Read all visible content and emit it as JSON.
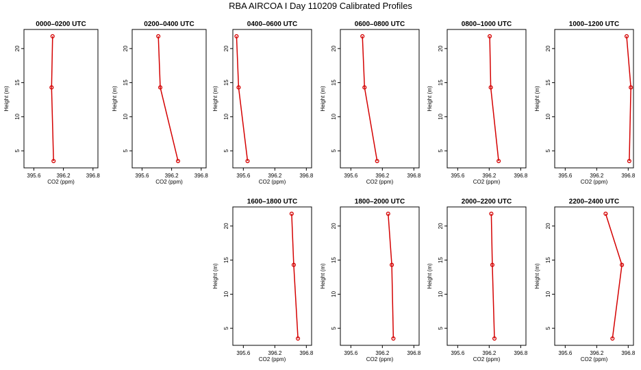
{
  "title": "RBA AIRCOA I  Day 110209  Calibrated Profiles",
  "colors": {
    "series": "#d40000",
    "axis": "#000000"
  },
  "chart_data": [
    {
      "type": "line",
      "title": "0000–0200 UTC",
      "xlabel": "CO2 (ppm)",
      "ylabel": "Height (m)",
      "xlim": [
        395.4,
        396.9
      ],
      "ylim": [
        2.5,
        22.8
      ],
      "xticks": [
        "395.6",
        "396.2",
        "396.8"
      ],
      "yticks": [
        "5",
        "10",
        "15",
        "20"
      ],
      "x": [
        396.0,
        395.96,
        395.98
      ],
      "y": [
        3.5,
        14.3,
        21.8
      ],
      "legend": "none",
      "grid": false
    },
    {
      "type": "line",
      "title": "0200–0400 UTC",
      "xlabel": "CO2 (ppm)",
      "ylabel": "Height (m)",
      "xlim": [
        395.4,
        396.9
      ],
      "ylim": [
        2.5,
        22.8
      ],
      "xticks": [
        "395.6",
        "396.2",
        "396.8"
      ],
      "yticks": [
        "5",
        "10",
        "15",
        "20"
      ],
      "x": [
        396.33,
        395.97,
        395.93
      ],
      "y": [
        3.5,
        14.3,
        21.8
      ],
      "legend": "none",
      "grid": false
    },
    {
      "type": "line",
      "title": "0400–0600 UTC",
      "xlabel": "CO2 (ppm)",
      "ylabel": "Height (m)",
      "xlim": [
        395.4,
        396.9
      ],
      "ylim": [
        2.5,
        22.8
      ],
      "xticks": [
        "395.6",
        "396.2",
        "396.8"
      ],
      "yticks": [
        "5",
        "10",
        "15",
        "20"
      ],
      "x": [
        395.68,
        395.51,
        395.47
      ],
      "y": [
        3.5,
        14.3,
        21.8
      ],
      "legend": "none",
      "grid": false
    },
    {
      "type": "line",
      "title": "0600–0800 UTC",
      "xlabel": "CO2 (ppm)",
      "ylabel": "Height (m)",
      "xlim": [
        395.4,
        396.9
      ],
      "ylim": [
        2.5,
        22.8
      ],
      "xticks": [
        "395.6",
        "396.2",
        "396.8"
      ],
      "yticks": [
        "5",
        "10",
        "15",
        "20"
      ],
      "x": [
        396.1,
        395.86,
        395.82
      ],
      "y": [
        3.5,
        14.3,
        21.8
      ],
      "legend": "none",
      "grid": false
    },
    {
      "type": "line",
      "title": "0800–1000 UTC",
      "xlabel": "CO2 (ppm)",
      "ylabel": "Height (m)",
      "xlim": [
        395.4,
        396.9
      ],
      "ylim": [
        2.5,
        22.8
      ],
      "xticks": [
        "395.6",
        "396.2",
        "396.8"
      ],
      "yticks": [
        "5",
        "10",
        "15",
        "20"
      ],
      "x": [
        396.38,
        396.23,
        396.21
      ],
      "y": [
        3.5,
        14.3,
        21.8
      ],
      "legend": "none",
      "grid": false
    },
    {
      "type": "line",
      "title": "1000–1200 UTC",
      "xlabel": "CO2 (ppm)",
      "ylabel": "Height (m)",
      "xlim": [
        395.4,
        396.9
      ],
      "ylim": [
        2.5,
        22.8
      ],
      "xticks": [
        "395.6",
        "396.2",
        "396.8"
      ],
      "yticks": [
        "5",
        "10",
        "15",
        "20"
      ],
      "x": [
        396.82,
        396.85,
        396.77
      ],
      "y": [
        3.5,
        14.3,
        21.8
      ],
      "legend": "none",
      "grid": false
    },
    {
      "type": "line",
      "title": "1600–1800 UTC",
      "xlabel": "CO2 (ppm)",
      "ylabel": "Height (m)",
      "xlim": [
        395.4,
        396.9
      ],
      "ylim": [
        2.5,
        22.8
      ],
      "xticks": [
        "395.6",
        "396.2",
        "396.8"
      ],
      "yticks": [
        "5",
        "10",
        "15",
        "20"
      ],
      "x": [
        396.64,
        396.56,
        396.52
      ],
      "y": [
        3.5,
        14.3,
        21.8
      ],
      "legend": "none",
      "grid": false
    },
    {
      "type": "line",
      "title": "1800–2000 UTC",
      "xlabel": "CO2 (ppm)",
      "ylabel": "Height (m)",
      "xlim": [
        395.4,
        396.9
      ],
      "ylim": [
        2.5,
        22.8
      ],
      "xticks": [
        "395.6",
        "396.2",
        "396.8"
      ],
      "yticks": [
        "5",
        "10",
        "15",
        "20"
      ],
      "x": [
        396.41,
        396.38,
        396.31
      ],
      "y": [
        3.5,
        14.3,
        21.8
      ],
      "legend": "none",
      "grid": false
    },
    {
      "type": "line",
      "title": "2000–2200 UTC",
      "xlabel": "CO2 (ppm)",
      "ylabel": "Height (m)",
      "xlim": [
        395.4,
        396.9
      ],
      "ylim": [
        2.5,
        22.8
      ],
      "xticks": [
        "395.6",
        "396.2",
        "396.8"
      ],
      "yticks": [
        "5",
        "10",
        "15",
        "20"
      ],
      "x": [
        396.3,
        396.26,
        396.24
      ],
      "y": [
        3.5,
        14.3,
        21.8
      ],
      "legend": "none",
      "grid": false
    },
    {
      "type": "line",
      "title": "2200–2400 UTC",
      "xlabel": "CO2 (ppm)",
      "ylabel": "Height (m)",
      "xlim": [
        395.4,
        396.9
      ],
      "ylim": [
        2.5,
        22.8
      ],
      "xticks": [
        "395.6",
        "396.2",
        "396.8"
      ],
      "yticks": [
        "5",
        "10",
        "15",
        "20"
      ],
      "x": [
        396.5,
        396.68,
        396.37
      ],
      "y": [
        3.5,
        14.3,
        21.8
      ],
      "legend": "none",
      "grid": false
    }
  ]
}
